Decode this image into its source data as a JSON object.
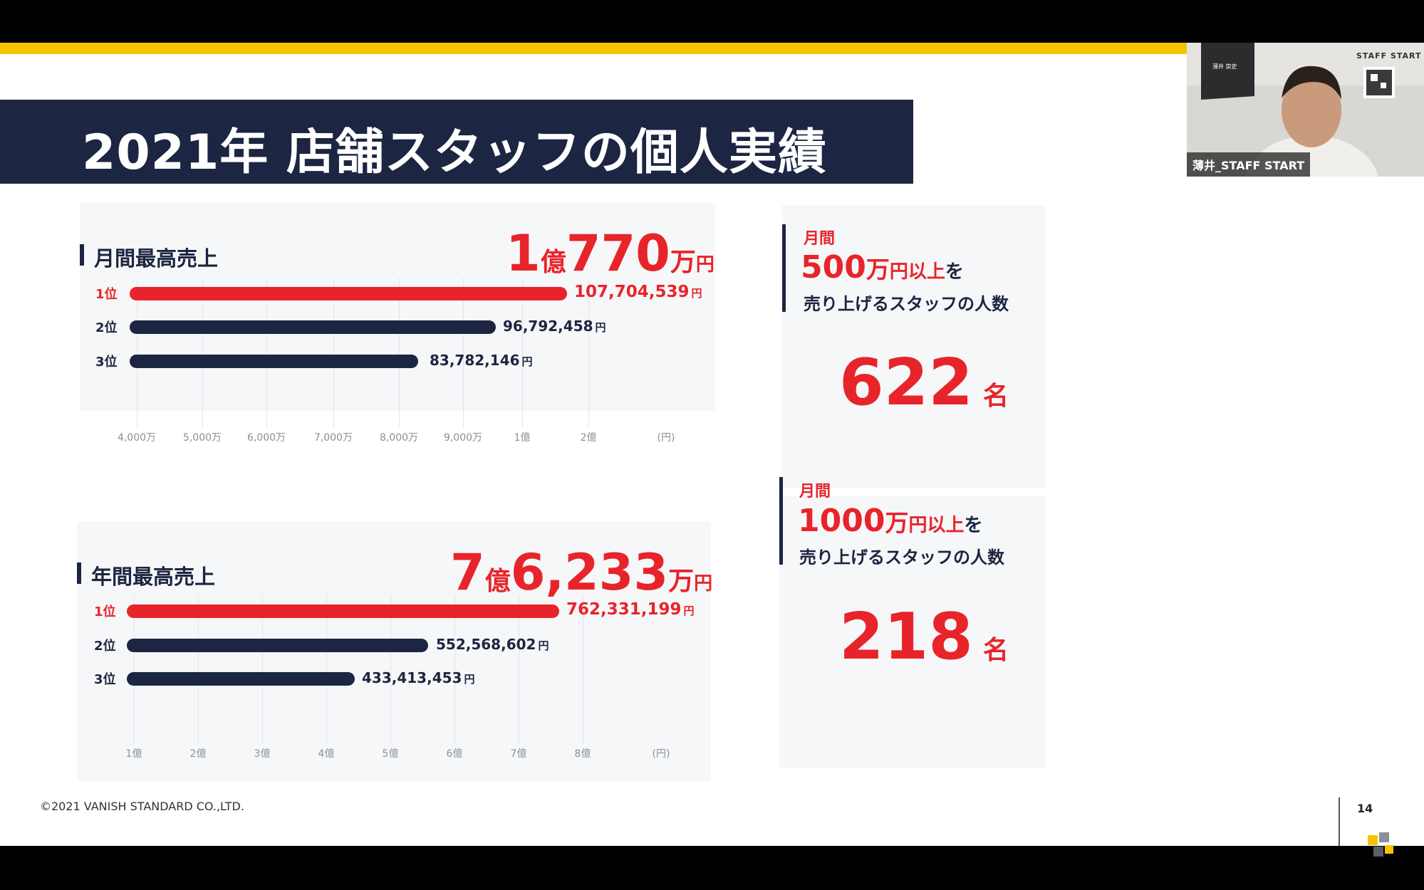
{
  "slide": {
    "title": "2021年 店舗スタッフの個人実績",
    "footer_copyright": "©2021 VANISH STANDARD CO.,LTD.",
    "page_number": "14"
  },
  "monthly": {
    "heading": "月間最高売上",
    "headline": {
      "n1": "1",
      "u1": "億",
      "n2": "770",
      "u2": "万",
      "s": "円"
    },
    "ranks": [
      {
        "label": "1位",
        "value": "107,704,539",
        "yen": "円",
        "amount": 107704539
      },
      {
        "label": "2位",
        "value": "96,792,458",
        "yen": "円",
        "amount": 96792458
      },
      {
        "label": "3位",
        "value": "83,782,146",
        "yen": "円",
        "amount": 83782146
      }
    ],
    "ticks": [
      "4,000万",
      "5,000万",
      "6,000万",
      "7,000万",
      "8,000万",
      "9,000万",
      "1億",
      "2億",
      "(円)"
    ]
  },
  "annual": {
    "heading": "年間最高売上",
    "headline": {
      "n1": "7",
      "u1": "億",
      "n2": "6,233",
      "u2": "万",
      "s": "円"
    },
    "ranks": [
      {
        "label": "1位",
        "value": "762,331,199",
        "yen": "円",
        "amount": 762331199
      },
      {
        "label": "2位",
        "value": "552,568,602",
        "yen": "円",
        "amount": 552568602
      },
      {
        "label": "3位",
        "value": "433,413,453",
        "yen": "円",
        "amount": 433413453
      }
    ],
    "ticks": [
      "1億",
      "2億",
      "3億",
      "4億",
      "5億",
      "6億",
      "7億",
      "8億",
      "(円)"
    ]
  },
  "stats": [
    {
      "period": "月間",
      "threshold_num": "500",
      "threshold_unit": "万",
      "threshold_yen": "円以上",
      "threshold_tail": "を",
      "sub": "売り上げるスタッフの人数",
      "count": "622",
      "count_unit": "名"
    },
    {
      "period": "月間",
      "threshold_num": "1000",
      "threshold_unit": "万",
      "threshold_yen": "円以上",
      "threshold_tail": "を",
      "sub": "売り上げるスタッフの人数",
      "count": "218",
      "count_unit": "名"
    }
  ],
  "webcam": {
    "name_label": "薄井_STAFF START",
    "backdrop_text": "STAFF START",
    "badge_name": "薄井 崇史"
  },
  "colors": {
    "accent_red": "#e8242b",
    "navy": "#1c2541",
    "yellow": "#f5c400"
  }
}
